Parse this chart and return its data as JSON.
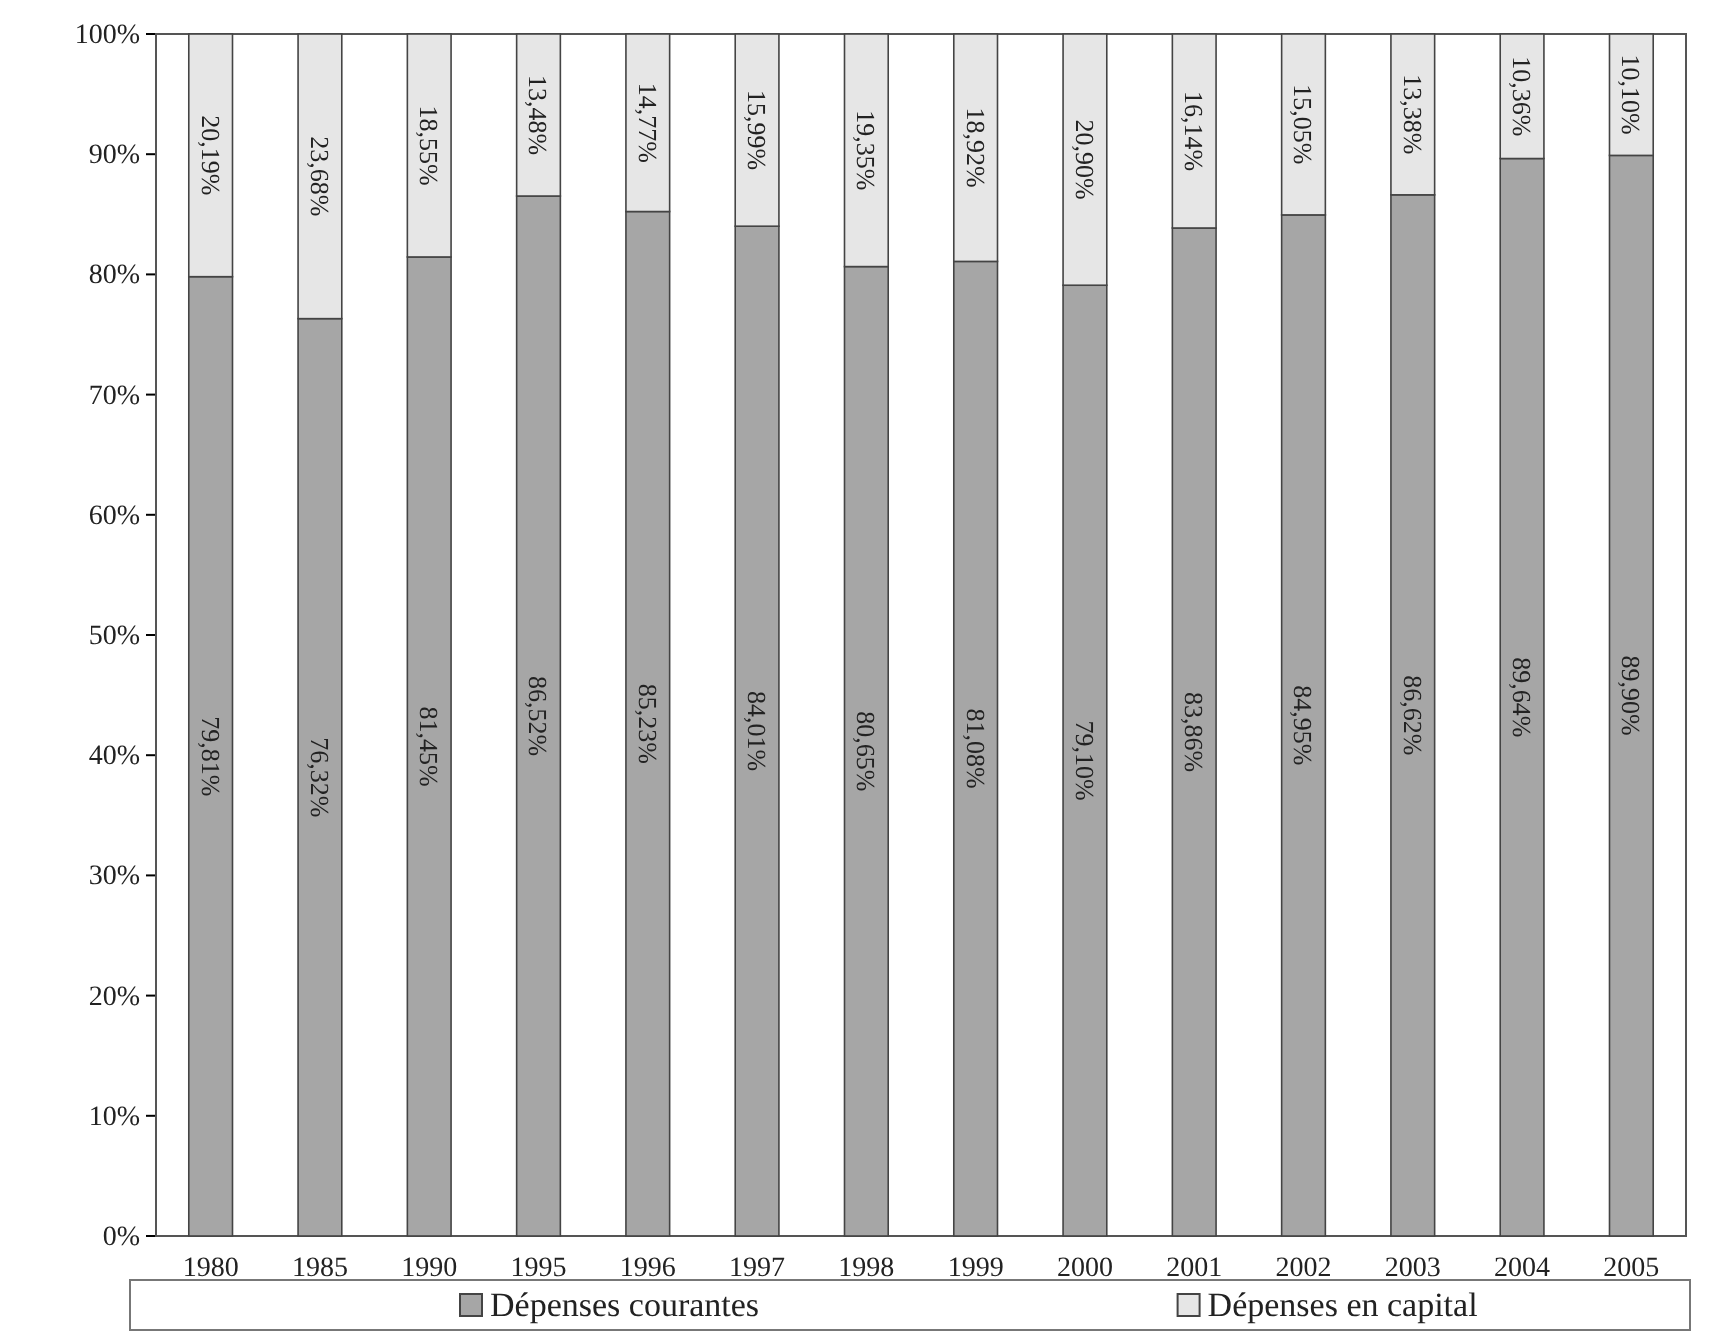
{
  "chart_data": {
    "type": "bar",
    "stacked": true,
    "categories": [
      "1980",
      "1985",
      "1990",
      "1995",
      "1996",
      "1997",
      "1998",
      "1999",
      "2000",
      "2001",
      "2002",
      "2003",
      "2004",
      "2005"
    ],
    "series": [
      {
        "name": "Dépenses courantes",
        "color": "#a6a6a6",
        "values": [
          79.81,
          76.32,
          81.45,
          86.52,
          85.23,
          84.01,
          80.65,
          81.08,
          79.1,
          83.86,
          84.95,
          86.62,
          89.64,
          89.9
        ],
        "value_labels": [
          "79,81%",
          "76,32%",
          "81,45%",
          "86,52%",
          "85,23%",
          "84,01%",
          "80,65%",
          "81,08%",
          "79,10%",
          "83,86%",
          "84,95%",
          "86,62%",
          "89,64%",
          "89,90%"
        ]
      },
      {
        "name": "Dépenses en capital",
        "color": "#e6e6e6",
        "values": [
          20.19,
          23.68,
          18.55,
          13.48,
          14.77,
          15.99,
          19.35,
          18.92,
          20.9,
          16.14,
          15.05,
          13.38,
          10.36,
          10.1
        ],
        "value_labels": [
          "20,19%",
          "23,68%",
          "18,55%",
          "13,48%",
          "14,77%",
          "15,99%",
          "19,35%",
          "18,92%",
          "20,90%",
          "16,14%",
          "15,05%",
          "13,38%",
          "10,36%",
          "10,10%"
        ]
      }
    ],
    "ylim": [
      0,
      100
    ],
    "yticks": [
      {
        "value": 0,
        "label": "0%"
      },
      {
        "value": 10,
        "label": "10%"
      },
      {
        "value": 20,
        "label": "20%"
      },
      {
        "value": 30,
        "label": "30%"
      },
      {
        "value": 40,
        "label": "40%"
      },
      {
        "value": 50,
        "label": "50%"
      },
      {
        "value": 60,
        "label": "60%"
      },
      {
        "value": 70,
        "label": "70%"
      },
      {
        "value": 80,
        "label": "80%"
      },
      {
        "value": 90,
        "label": "90%"
      },
      {
        "value": 100,
        "label": "100%"
      }
    ],
    "grid": false,
    "legend": "bottom"
  }
}
